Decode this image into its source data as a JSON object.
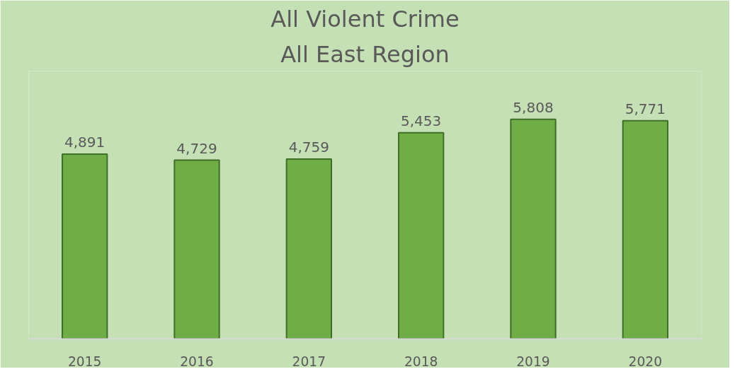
{
  "chart_data": {
    "type": "bar",
    "title": "All Violent Crime",
    "subtitle": "All East Region",
    "categories": [
      "2015",
      "2016",
      "2017",
      "2018",
      "2019",
      "2020"
    ],
    "values": [
      4891,
      4729,
      4759,
      5453,
      5808,
      5771
    ],
    "value_labels": [
      "4,891",
      "4,729",
      "4,759",
      "5,453",
      "5,808",
      "5,771"
    ],
    "color": "#70ad47",
    "grid": false
  }
}
